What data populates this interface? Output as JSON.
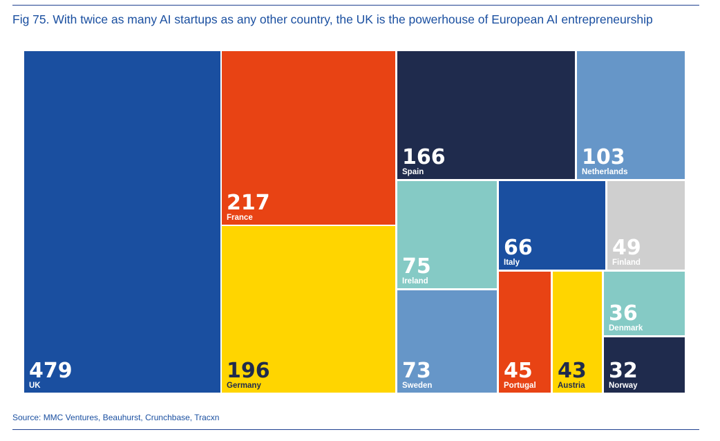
{
  "title": "Fig 75. With twice as many AI startups as any other country, the UK is the powerhouse of European AI entrepreneurship",
  "source": "Source: MMC Ventures, Beauhurst, Crunchbase, Tracxn",
  "chart_data": {
    "type": "treemap",
    "title": "Fig 75. With twice as many AI startups as any other country, the UK is the powerhouse of European AI entrepreneurship",
    "items": [
      {
        "label": "UK",
        "value": 479,
        "color": "#1a4fa0",
        "text": "light"
      },
      {
        "label": "France",
        "value": 217,
        "color": "#e84314",
        "text": "light"
      },
      {
        "label": "Germany",
        "value": 196,
        "color": "#ffd500",
        "text": "dark"
      },
      {
        "label": "Spain",
        "value": 166,
        "color": "#1f2b4d",
        "text": "light"
      },
      {
        "label": "Netherlands",
        "value": 103,
        "color": "#6696c8",
        "text": "light"
      },
      {
        "label": "Ireland",
        "value": 75,
        "color": "#85cac5",
        "text": "light"
      },
      {
        "label": "Sweden",
        "value": 73,
        "color": "#6696c8",
        "text": "light"
      },
      {
        "label": "Italy",
        "value": 66,
        "color": "#1a4fa0",
        "text": "light"
      },
      {
        "label": "Finland",
        "value": 49,
        "color": "#cfcfcf",
        "text": "light"
      },
      {
        "label": "Portugal",
        "value": 45,
        "color": "#e84314",
        "text": "light"
      },
      {
        "label": "Austria",
        "value": 43,
        "color": "#ffd500",
        "text": "dark"
      },
      {
        "label": "Denmark",
        "value": 36,
        "color": "#85cac5",
        "text": "light"
      },
      {
        "label": "Norway",
        "value": 32,
        "color": "#1f2b4d",
        "text": "light"
      }
    ]
  }
}
